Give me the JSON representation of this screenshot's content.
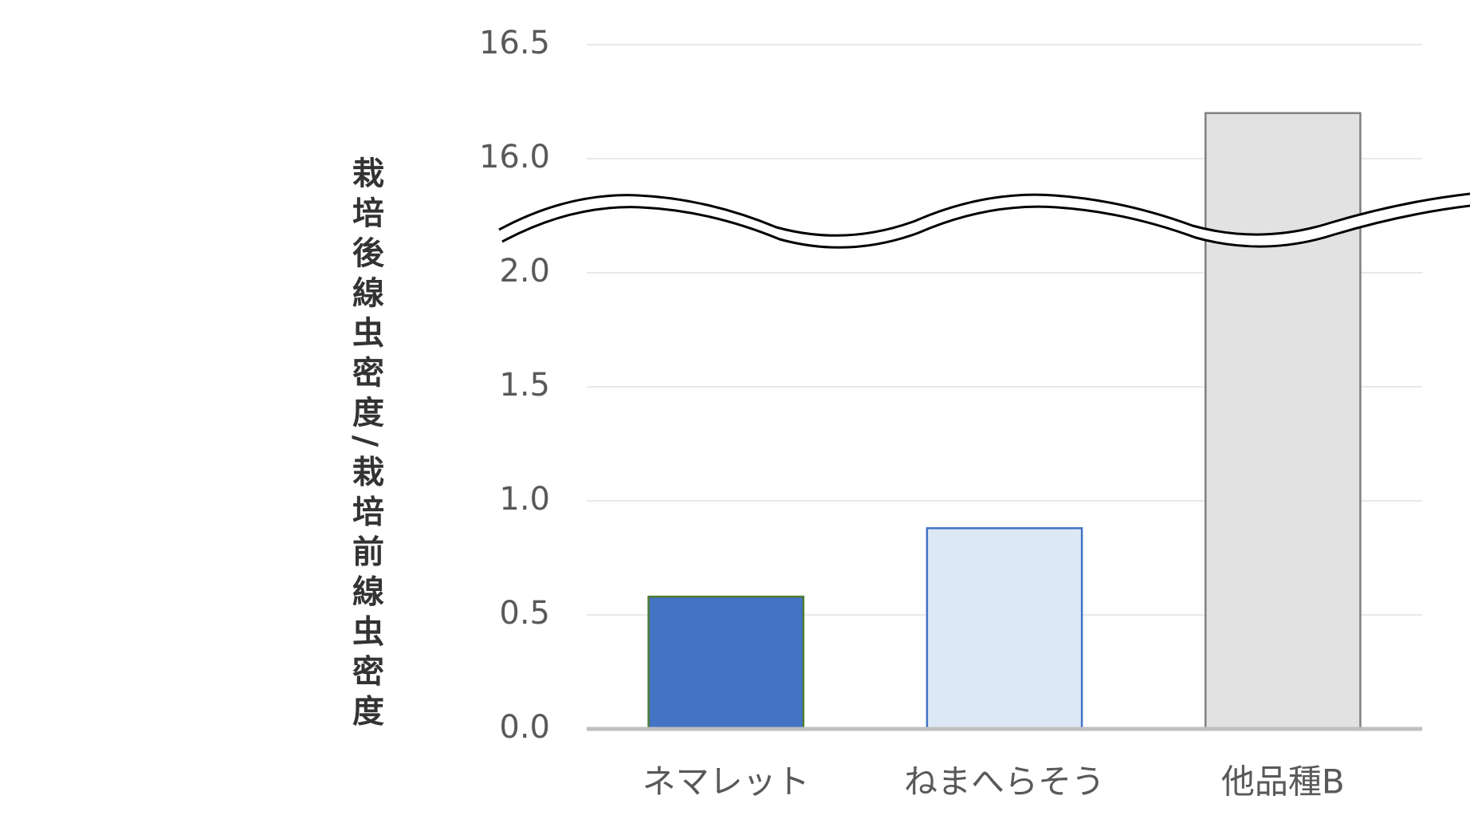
{
  "chart_data": {
    "type": "bar",
    "y_label": "栽培後線虫密度/栽培前線虫密度",
    "categories": [
      "ネマレット",
      "ねまへらそう",
      "他品種B"
    ],
    "values": [
      0.58,
      0.88,
      16.2
    ],
    "colors": [
      "#4472c4",
      "#dde8f5",
      "#e2e2e2"
    ],
    "edge_colors": [
      "#4e7d33",
      "#4472c4",
      "#808080"
    ],
    "ylim": [
      0,
      16.5
    ],
    "axis_break": [
      2.0,
      16.0
    ],
    "yticks": [
      {
        "value": 0,
        "label": "0.0"
      },
      0.5,
      {
        "value": 1,
        "label": "1.0"
      },
      1.5,
      {
        "value": 2,
        "label": "2.0"
      },
      {
        "value": 16,
        "label": "16.0"
      },
      16.5
    ],
    "grid": true
  }
}
